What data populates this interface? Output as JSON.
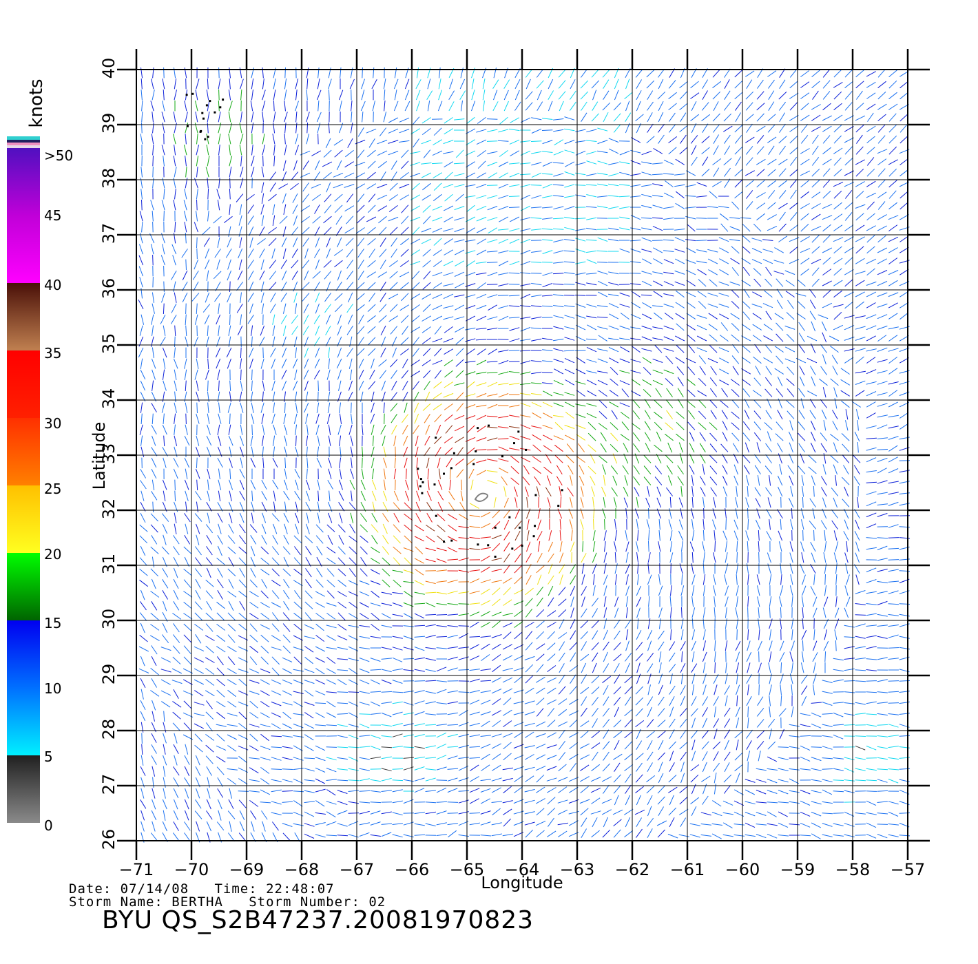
{
  "chart_data": {
    "type": "wind-vector-map",
    "xlabel": "Longitude",
    "ylabel": "Latitude",
    "xlim": [
      -71,
      -57
    ],
    "ylim": [
      26,
      40
    ],
    "x_ticks": [
      "-71",
      "-70",
      "-69",
      "-68",
      "-67",
      "-66",
      "-65",
      "-64",
      "-63",
      "-62",
      "-61",
      "-60",
      "-59",
      "-58",
      "-57"
    ],
    "y_ticks": [
      "26",
      "27",
      "28",
      "29",
      "30",
      "31",
      "32",
      "33",
      "34",
      "35",
      "36",
      "37",
      "38",
      "39",
      "40"
    ],
    "grid": true,
    "storm_center": {
      "lon": -64.7,
      "lat": 32.3
    },
    "colorbar": {
      "title": "knots",
      "labels": [
        ">50",
        "45",
        "40",
        "35",
        "30",
        "25",
        "20",
        "15",
        "10",
        "5",
        "0"
      ],
      "bands": [
        {
          "range": "0-5",
          "from": "#8a8a8a",
          "to": "#202020"
        },
        {
          "range": "5-10",
          "from": "#00f0ff",
          "to": "#0080ff"
        },
        {
          "range": "10-15",
          "from": "#0070ff",
          "to": "#0000f0"
        },
        {
          "range": "15-20",
          "from": "#006400",
          "to": "#00ff00"
        },
        {
          "range": "20-25",
          "from": "#ffff20",
          "to": "#ffc000"
        },
        {
          "range": "25-30",
          "from": "#ff8000",
          "to": "#ff3000"
        },
        {
          "range": "30-35",
          "from": "#ff2000",
          "to": "#ff0000"
        },
        {
          "range": "35-40",
          "from": "#c08050",
          "to": "#4a1008"
        },
        {
          "range": "40-45",
          "from": "#ff00ff",
          "to": "#d000e0"
        },
        {
          "range": "45-50",
          "from": "#b000d0",
          "to": "#5010c0"
        }
      ]
    }
  },
  "footer": {
    "date_line": "Date: 07/14/08   Time: 22:48:07",
    "storm_line": "Storm Name: BERTHA   Storm Number: 02",
    "product_id": "BYU QS_S2B47237.20081970823"
  }
}
